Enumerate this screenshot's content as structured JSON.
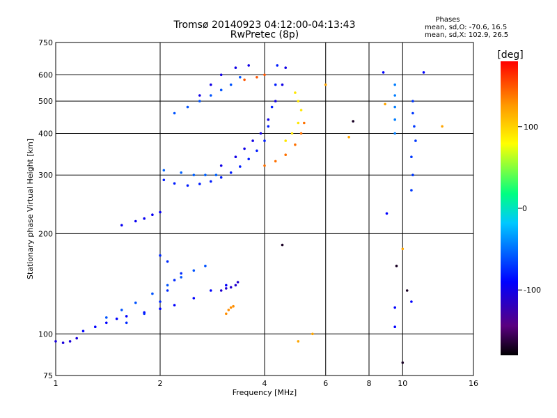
{
  "chart_data": {
    "type": "scatter",
    "title": "Tromsø 20140923 04:12:00-04:13:43",
    "subtitle": "RwPretec (8p)",
    "xlabel": "Frequency [MHz]",
    "ylabel": "Stationary phase Virtual Height [km]",
    "x_scale": "log",
    "y_scale": "log",
    "xlim": [
      1,
      16
    ],
    "ylim": [
      75,
      750
    ],
    "x_ticks": [
      1,
      2,
      4,
      6,
      8,
      10,
      16
    ],
    "y_ticks": [
      75,
      100,
      200,
      300,
      400,
      500,
      600,
      750
    ],
    "x_gridlines": [
      2,
      4,
      6,
      8,
      10
    ],
    "y_gridlines": [
      100,
      200,
      300,
      400,
      500,
      600
    ],
    "grid": true,
    "legend": {
      "title": "Phases",
      "line1": "mean, sd,O: -70.6, 16.5",
      "line2": "mean, sd,X: 102.9, 26.5"
    },
    "colorbar": {
      "label": "[deg]",
      "min": -180,
      "max": 180,
      "ticks": [
        -100,
        0,
        100
      ],
      "colormap": "rainbow (black-purple-blue-cyan-green-yellow-orange-red)"
    },
    "traces": [
      {
        "name": "",
        "phase": -105,
        "points": [
          [
            1.0,
            95
          ],
          [
            1.05,
            94
          ],
          [
            1.1,
            95
          ],
          [
            1.15,
            97
          ]
        ]
      },
      {
        "name": "",
        "phase": -90,
        "points": [
          [
            1.2,
            102
          ],
          [
            1.3,
            105
          ],
          [
            1.4,
            108
          ],
          [
            1.5,
            111
          ],
          [
            1.6,
            113
          ],
          [
            1.8,
            116
          ],
          [
            2.0,
            119
          ],
          [
            2.2,
            122
          ],
          [
            2.5,
            128
          ],
          [
            2.8,
            135
          ],
          [
            3.1,
            140
          ]
        ]
      },
      {
        "name": "",
        "phase": -60,
        "points": [
          [
            1.4,
            112
          ],
          [
            1.55,
            118
          ],
          [
            1.7,
            124
          ],
          [
            1.9,
            132
          ],
          [
            2.1,
            140
          ],
          [
            2.3,
            148
          ],
          [
            2.5,
            155
          ],
          [
            2.7,
            160
          ]
        ]
      },
      {
        "name": "",
        "phase": -75,
        "points": [
          [
            1.6,
            108
          ],
          [
            1.8,
            115
          ],
          [
            2.0,
            125
          ],
          [
            2.1,
            135
          ],
          [
            2.2,
            145
          ],
          [
            2.3,
            152
          ],
          [
            2.1,
            165
          ],
          [
            2.0,
            172
          ]
        ]
      },
      {
        "name": "",
        "phase": -110,
        "points": [
          [
            3.0,
            135
          ],
          [
            3.1,
            137
          ],
          [
            3.2,
            138
          ],
          [
            3.3,
            140
          ],
          [
            3.35,
            143
          ]
        ]
      },
      {
        "name": "",
        "phase": 130,
        "points": [
          [
            3.1,
            115
          ],
          [
            3.15,
            118
          ],
          [
            3.2,
            120
          ],
          [
            3.25,
            121
          ]
        ]
      },
      {
        "name": "",
        "phase": -95,
        "points": [
          [
            1.55,
            212
          ],
          [
            1.7,
            218
          ],
          [
            1.8,
            222
          ],
          [
            1.9,
            228
          ],
          [
            2.0,
            232
          ]
        ]
      },
      {
        "name": "",
        "phase": -80,
        "points": [
          [
            2.05,
            290
          ],
          [
            2.2,
            283
          ],
          [
            2.4,
            279
          ],
          [
            2.6,
            282
          ],
          [
            2.8,
            287
          ],
          [
            3.0,
            295
          ],
          [
            3.2,
            305
          ],
          [
            3.4,
            318
          ],
          [
            3.6,
            335
          ],
          [
            3.8,
            355
          ],
          [
            4.0,
            380
          ],
          [
            4.1,
            420
          ],
          [
            4.2,
            480
          ],
          [
            4.3,
            560
          ],
          [
            4.35,
            640
          ]
        ]
      },
      {
        "name": "",
        "phase": -55,
        "points": [
          [
            2.05,
            310
          ],
          [
            2.3,
            305
          ],
          [
            2.5,
            300
          ],
          [
            2.7,
            300
          ],
          [
            2.9,
            300
          ]
        ]
      },
      {
        "name": "",
        "phase": -100,
        "points": [
          [
            3.0,
            320
          ],
          [
            3.3,
            340
          ],
          [
            3.5,
            360
          ],
          [
            3.7,
            380
          ],
          [
            3.9,
            400
          ],
          [
            4.1,
            440
          ],
          [
            4.3,
            500
          ],
          [
            4.5,
            560
          ],
          [
            4.6,
            630
          ]
        ]
      },
      {
        "name": "",
        "phase": 140,
        "points": [
          [
            4.0,
            320
          ],
          [
            4.3,
            330
          ],
          [
            4.6,
            345
          ],
          [
            4.9,
            370
          ],
          [
            5.1,
            400
          ],
          [
            5.2,
            430
          ]
        ]
      },
      {
        "name": "",
        "phase": 90,
        "points": [
          [
            4.6,
            380
          ],
          [
            4.8,
            400
          ],
          [
            5.0,
            430
          ],
          [
            5.1,
            470
          ],
          [
            5.0,
            500
          ],
          [
            4.9,
            530
          ]
        ]
      },
      {
        "name": "",
        "phase": -60,
        "points": [
          [
            2.2,
            460
          ],
          [
            2.4,
            480
          ],
          [
            2.6,
            500
          ],
          [
            2.8,
            520
          ],
          [
            3.0,
            540
          ],
          [
            3.2,
            560
          ],
          [
            3.4,
            590
          ]
        ]
      },
      {
        "name": "",
        "phase": -100,
        "points": [
          [
            2.6,
            520
          ],
          [
            2.8,
            560
          ],
          [
            3.0,
            600
          ],
          [
            3.3,
            630
          ],
          [
            3.6,
            640
          ]
        ]
      },
      {
        "name": "",
        "phase": 150,
        "points": [
          [
            3.5,
            580
          ],
          [
            3.8,
            590
          ],
          [
            4.0,
            600
          ]
        ]
      },
      {
        "name": "",
        "phase": -45,
        "points": [
          [
            9.5,
            560
          ],
          [
            9.5,
            520
          ],
          [
            9.5,
            480
          ],
          [
            9.5,
            440
          ],
          [
            9.5,
            400
          ]
        ]
      },
      {
        "name": "",
        "phase": -70,
        "points": [
          [
            10.7,
            500
          ],
          [
            10.7,
            460
          ],
          [
            10.8,
            420
          ],
          [
            10.9,
            380
          ],
          [
            10.6,
            340
          ],
          [
            10.7,
            300
          ],
          [
            10.6,
            270
          ]
        ]
      },
      {
        "name": "",
        "phase": -90,
        "points": [
          [
            9.0,
            230
          ],
          [
            8.8,
            610
          ],
          [
            11.5,
            610
          ],
          [
            10.6,
            125
          ],
          [
            9.5,
            120
          ],
          [
            9.5,
            105
          ]
        ]
      },
      {
        "name": "",
        "phase": 120,
        "points": [
          [
            6.0,
            560
          ],
          [
            7.0,
            390
          ],
          [
            13.0,
            420
          ],
          [
            8.9,
            490
          ],
          [
            10.0,
            180
          ],
          [
            5.5,
            100
          ],
          [
            5.0,
            95
          ]
        ]
      },
      {
        "name": "",
        "phase": -170,
        "points": [
          [
            9.6,
            160
          ],
          [
            10.0,
            82
          ],
          [
            10.3,
            135
          ],
          [
            4.5,
            185
          ],
          [
            7.2,
            435
          ]
        ]
      }
    ]
  }
}
